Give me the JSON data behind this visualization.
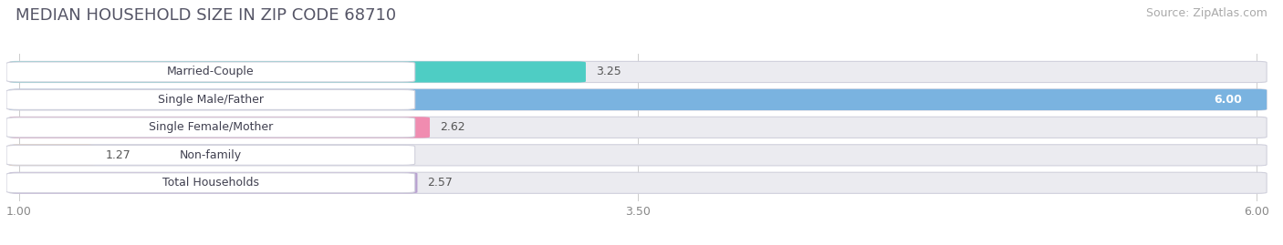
{
  "title": "MEDIAN HOUSEHOLD SIZE IN ZIP CODE 68710",
  "source": "Source: ZipAtlas.com",
  "categories": [
    "Married-Couple",
    "Single Male/Father",
    "Single Female/Mother",
    "Non-family",
    "Total Households"
  ],
  "values": [
    3.25,
    6.0,
    2.62,
    1.27,
    2.57
  ],
  "bar_colors": [
    "#4ecdc4",
    "#7ab3e0",
    "#f08cb0",
    "#f5c98a",
    "#b8a0d0"
  ],
  "label_bg_colors": [
    "#ffffff",
    "#ffffff",
    "#ffffff",
    "#ffffff",
    "#ffffff"
  ],
  "xmin": 1.0,
  "xmax": 6.0,
  "xticks": [
    1.0,
    3.5,
    6.0
  ],
  "xtick_labels": [
    "1.00",
    "3.50",
    "6.00"
  ],
  "background_color": "#ffffff",
  "bar_bg_color": "#ebebf0",
  "title_fontsize": 13,
  "source_fontsize": 9,
  "label_fontsize": 9,
  "value_fontsize": 9
}
